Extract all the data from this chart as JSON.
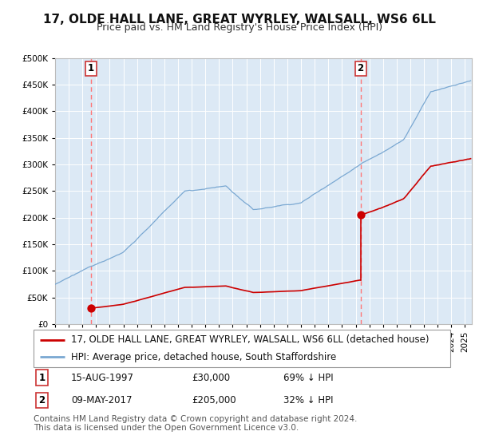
{
  "title": "17, OLDE HALL LANE, GREAT WYRLEY, WALSALL, WS6 6LL",
  "subtitle": "Price paid vs. HM Land Registry's House Price Index (HPI)",
  "ylim": [
    0,
    500000
  ],
  "xlim_start": 1995.0,
  "xlim_end": 2025.5,
  "bg_color": "#dce9f5",
  "grid_color": "#ffffff",
  "sale1_year": 1997.617,
  "sale1_price": 30000,
  "sale2_year": 2017.355,
  "sale2_price": 205000,
  "legend_line1": "17, OLDE HALL LANE, GREAT WYRLEY, WALSALL, WS6 6LL (detached house)",
  "legend_line2": "HPI: Average price, detached house, South Staffordshire",
  "table_row1": [
    "1",
    "15-AUG-1997",
    "£30,000",
    "69% ↓ HPI"
  ],
  "table_row2": [
    "2",
    "09-MAY-2017",
    "£205,000",
    "32% ↓ HPI"
  ],
  "footnote1": "Contains HM Land Registry data © Crown copyright and database right 2024.",
  "footnote2": "This data is licensed under the Open Government Licence v3.0.",
  "red_line_color": "#cc0000",
  "blue_line_color": "#7aa8d2",
  "dashed_line_color": "#ff7777",
  "marker_color": "#cc0000",
  "title_fontsize": 11,
  "subtitle_fontsize": 9,
  "tick_fontsize": 7.5,
  "legend_fontsize": 8.5,
  "table_fontsize": 8.5,
  "footnote_fontsize": 7.5
}
